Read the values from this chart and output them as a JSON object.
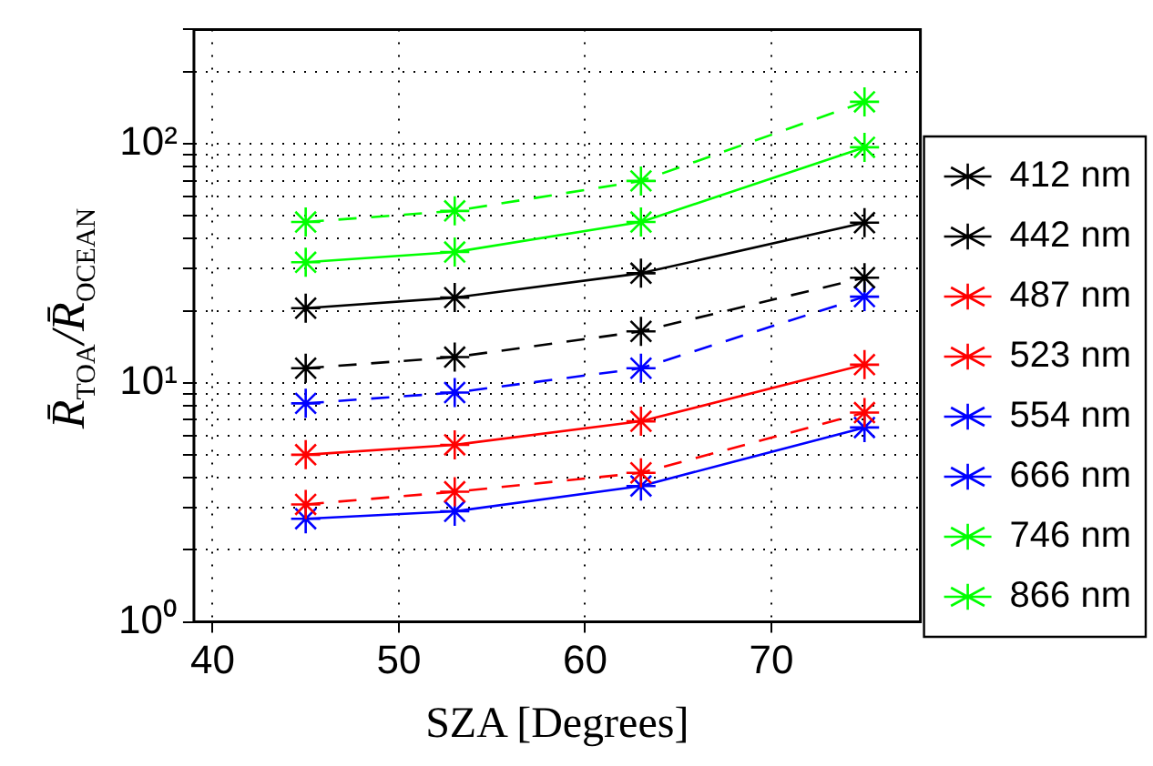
{
  "chart_data": {
    "type": "line",
    "xlabel": "SZA [Degrees]",
    "ylabel": "R̄$_{TOA}$/R̄$_{OCEAN}$",
    "x": [
      45,
      53,
      63,
      75
    ],
    "xlim": [
      39,
      78
    ],
    "xticks": [
      40,
      50,
      60,
      70
    ],
    "ylim": [
      1,
      300
    ],
    "yticks": [
      {
        "value": 1,
        "label": "10⁰"
      },
      {
        "value": 2,
        "label": null
      },
      {
        "value": 3,
        "label": null
      },
      {
        "value": 4,
        "label": null
      },
      {
        "value": 5,
        "label": null
      },
      {
        "value": 6,
        "label": null
      },
      {
        "value": 7,
        "label": null
      },
      {
        "value": 8,
        "label": null
      },
      {
        "value": 9,
        "label": null
      },
      {
        "value": 10,
        "label": "10¹"
      },
      {
        "value": 20,
        "label": null
      },
      {
        "value": 30,
        "label": null
      },
      {
        "value": 40,
        "label": null
      },
      {
        "value": 50,
        "label": null
      },
      {
        "value": 60,
        "label": null
      },
      {
        "value": 70,
        "label": null
      },
      {
        "value": 80,
        "label": null
      },
      {
        "value": 90,
        "label": null
      },
      {
        "value": 100,
        "label": "10²"
      },
      {
        "value": 200,
        "label": null
      },
      {
        "value": 300,
        "label": null
      }
    ],
    "log": "y",
    "grid": true,
    "legend": "right",
    "marker": "cross",
    "series": [
      {
        "name": "412 nm",
        "color": "#000000",
        "line_style": "solid",
        "values": [
          20.5,
          22.7,
          28.7,
          46.7
        ]
      },
      {
        "name": "442 nm",
        "color": "#000000",
        "line_style": "dashed",
        "values": [
          11.5,
          12.8,
          16.4,
          27.5
        ]
      },
      {
        "name": "487 nm",
        "color": "#ff0000",
        "line_style": "solid",
        "values": [
          5.0,
          5.5,
          6.9,
          11.9
        ]
      },
      {
        "name": "523 nm",
        "color": "#ff0000",
        "line_style": "dashed",
        "values": [
          3.1,
          3.5,
          4.2,
          7.5
        ]
      },
      {
        "name": "554 nm",
        "color": "#0000ff",
        "line_style": "solid",
        "values": [
          2.7,
          2.9,
          3.7,
          6.5
        ]
      },
      {
        "name": "666 nm",
        "color": "#0000ff",
        "line_style": "dashed",
        "values": [
          8.2,
          9.1,
          11.5,
          22.9
        ]
      },
      {
        "name": "746 nm",
        "color": "#00ff00",
        "line_style": "solid",
        "values": [
          31.9,
          35.2,
          47.0,
          96.5
        ]
      },
      {
        "name": "866 nm",
        "color": "#00ff00",
        "line_style": "dashed",
        "values": [
          47.0,
          52.3,
          69.8,
          149.5
        ]
      }
    ]
  }
}
